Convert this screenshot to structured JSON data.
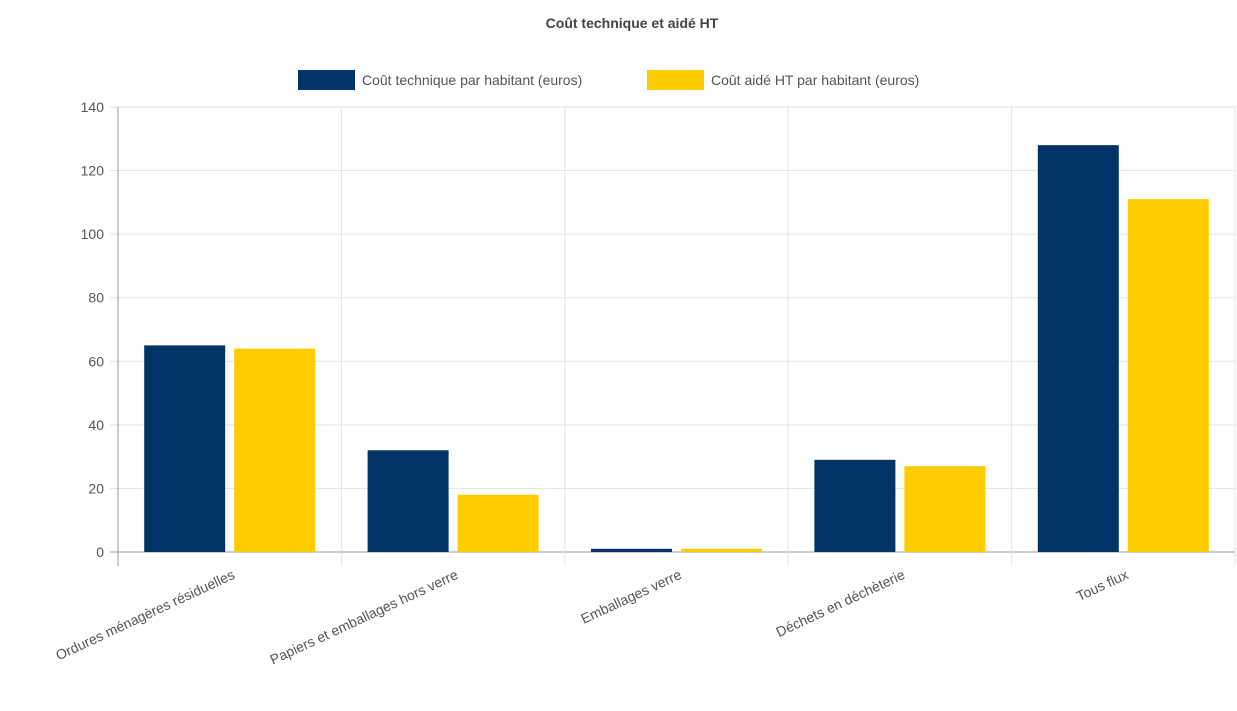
{
  "chart_data": {
    "type": "bar",
    "title": "Coût technique et aidé HT",
    "categories": [
      "Ordures ménagères résiduelles",
      "Papiers et emballages hors verre",
      "Emballages verre",
      "Déchets en déchèterie",
      "Tous flux"
    ],
    "series": [
      {
        "name": "Coût technique par habitant (euros)",
        "color": "#003366",
        "values": [
          65,
          32,
          1,
          29,
          128
        ]
      },
      {
        "name": "Coût aidé HT par habitant (euros)",
        "color": "#ffcc00",
        "values": [
          64,
          18,
          1,
          27,
          111
        ]
      }
    ],
    "yticks": [
      "0",
      "20",
      "40",
      "60",
      "80",
      "100",
      "120",
      "140"
    ],
    "ylim": [
      0,
      140
    ],
    "grid": true,
    "legend_position": "top"
  }
}
